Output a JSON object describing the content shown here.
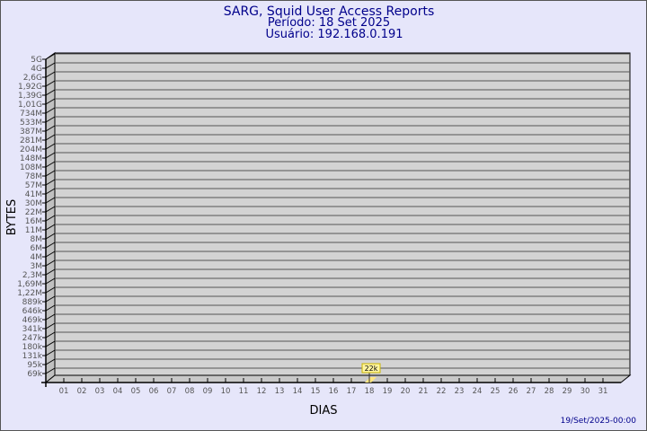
{
  "chart_data": {
    "type": "bar",
    "title": "SARG, Squid User Access Reports",
    "subtitle_period": "Período: 18 Set 2025",
    "subtitle_user": "Usuário: 192.168.0.191",
    "xlabel": "DIAS",
    "ylabel": "BYTES",
    "x_ticks": [
      "01",
      "02",
      "03",
      "04",
      "05",
      "06",
      "07",
      "08",
      "09",
      "10",
      "11",
      "12",
      "13",
      "14",
      "15",
      "16",
      "17",
      "18",
      "19",
      "20",
      "21",
      "22",
      "23",
      "24",
      "25",
      "26",
      "27",
      "28",
      "29",
      "30",
      "31"
    ],
    "y_ticks": [
      "5G",
      "4G",
      "2,6G",
      "1,92G",
      "1,39G",
      "1,01G",
      "734M",
      "533M",
      "387M",
      "281M",
      "204M",
      "148M",
      "108M",
      "78M",
      "57M",
      "41M",
      "30M",
      "22M",
      "16M",
      "11M",
      "8M",
      "6M",
      "4M",
      "3M",
      "2,3M",
      "1,69M",
      "1,22M",
      "889k",
      "646k",
      "469k",
      "341k",
      "247k",
      "180k",
      "131k",
      "95k",
      "69k"
    ],
    "scale": "log",
    "grid": true,
    "points": [
      {
        "x": "18",
        "value": 22000,
        "label": "22k"
      }
    ],
    "colors": {
      "title": "#00008b",
      "bar": "#ffe680",
      "plot_bg": "#d3d3d3",
      "page_bg": "#e6e6fa"
    }
  },
  "footer": {
    "timestamp": "19/Set/2025-00:00"
  }
}
